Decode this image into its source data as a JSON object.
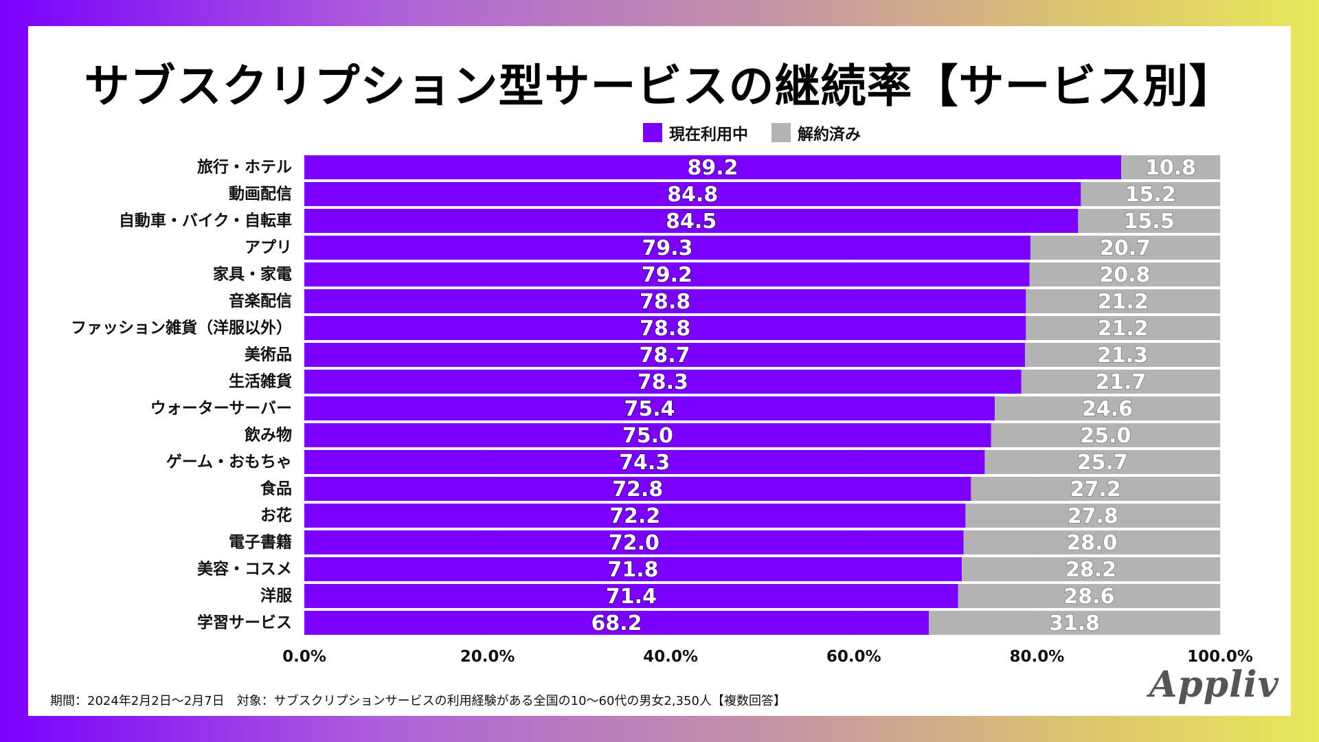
{
  "title": "サブスクリプション型サービスの継続率【サービス別】",
  "legend": [
    {
      "label": "現在利用中",
      "color": "#7b00ff"
    },
    {
      "label": "解約済み",
      "color": "#b3b3b3"
    }
  ],
  "footnote": "期間：2024年2月2日〜2月7日　対象：サブスクリプションサービスの利用経験がある全国の10〜60代の男女2,350人【複数回答】",
  "brand": "Appliv",
  "chart_data": {
    "type": "bar",
    "orientation": "horizontal",
    "stacked": true,
    "title": "サブスクリプション型サービスの継続率【サービス別】",
    "xlabel": "",
    "ylabel": "",
    "xlim": [
      0,
      100
    ],
    "legend_position": "top-right",
    "categories": [
      "旅行・ホテル",
      "動画配信",
      "自動車・バイク・自転車",
      "アプリ",
      "家具・家電",
      "音楽配信",
      "ファッション雑貨（洋服以外）",
      "美術品",
      "生活雑貨",
      "ウォーターサーバー",
      "飲み物",
      "ゲーム・おもちゃ",
      "食品",
      "お花",
      "電子書籍",
      "美容・コスメ",
      "洋服",
      "学習サービス"
    ],
    "series": [
      {
        "name": "現在利用中",
        "color": "#7b00ff",
        "values": [
          89.2,
          84.8,
          84.5,
          79.3,
          79.2,
          78.8,
          78.8,
          78.7,
          78.3,
          75.4,
          75.0,
          74.3,
          72.8,
          72.2,
          72.0,
          71.8,
          71.4,
          68.2
        ],
        "labels": [
          "89.2",
          "84.8",
          "84.5",
          "79.3",
          "79.2",
          "78.8",
          "78.8",
          "78.7",
          "78.3",
          "75.4",
          "75.0",
          "74.3",
          "72.8",
          "72.2",
          "72.0",
          "71.8",
          "71.4",
          "68.2"
        ]
      },
      {
        "name": "解約済み",
        "color": "#b3b3b3",
        "values": [
          10.8,
          15.2,
          15.5,
          20.7,
          20.8,
          21.2,
          21.2,
          21.3,
          21.7,
          24.6,
          25.0,
          25.7,
          27.2,
          27.8,
          28.0,
          28.2,
          28.6,
          31.8
        ],
        "labels": [
          "10.8",
          "15.2",
          "15.5",
          "20.7",
          "20.8",
          "21.2",
          "21.2",
          "21.3",
          "21.7",
          "24.6",
          "25.0",
          "25.7",
          "27.2",
          "27.8",
          "28.0",
          "28.2",
          "28.6",
          "31.8"
        ]
      }
    ],
    "x_ticks": [
      "0.0%",
      "20.0%",
      "40.0%",
      "60.0%",
      "80.0%",
      "100.0%"
    ],
    "x_tick_values": [
      0,
      20,
      40,
      60,
      80,
      100
    ],
    "grid": true
  }
}
